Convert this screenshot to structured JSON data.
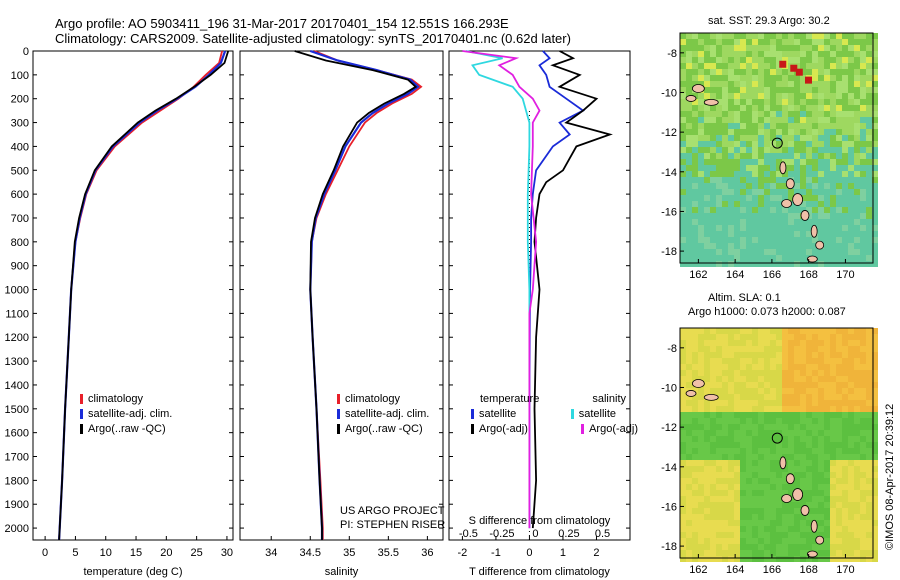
{
  "header": {
    "line1": "Argo profile: AO 5903411_196 31-Mar-2017 20170401_154 12.551S 166.293E",
    "line2": "Climatology: CARS2009. Satellite-adjusted climatology: synTS_20170401.nc (0.62d later)"
  },
  "colors": {
    "climatology": "#e8202a",
    "satellite": "#1a2bd8",
    "argo": "#000000",
    "satellite_salinity": "#2fd8e0",
    "argo_salinity": "#e020e0"
  },
  "map_sst": {
    "title": "sat. SST: 29.3 Argo: 30.2",
    "xticks": [
      "162",
      "164",
      "166",
      "168",
      "170"
    ],
    "yticks": [
      "-8",
      "-10",
      "-12",
      "-14",
      "-16",
      "-18"
    ]
  },
  "map_sla": {
    "title1": "Altim. SLA: 0.1",
    "title2": "Argo h1000: 0.073 h2000: 0.087",
    "xticks": [
      "162",
      "164",
      "166",
      "168",
      "170"
    ],
    "yticks": [
      "-8",
      "-10",
      "-12",
      "-14",
      "-16",
      "-18"
    ]
  },
  "credit": {
    "imos": "©IMOS 08-Apr-2017 20:39:12",
    "project": "US ARGO PROJECT",
    "pi": "PI: STEPHEN RISER"
  },
  "chart_data": [
    {
      "type": "line",
      "xlabel": "temperature (deg C)",
      "ylabel": "",
      "xlim": [
        -2,
        31
      ],
      "ylim": [
        2050,
        0
      ],
      "xticks": [
        "0",
        "5",
        "10",
        "15",
        "20",
        "25",
        "30"
      ],
      "yticks": [
        "0",
        "100",
        "200",
        "300",
        "400",
        "500",
        "600",
        "700",
        "800",
        "900",
        "1000",
        "1100",
        "1200",
        "1300",
        "1400",
        "1500",
        "1600",
        "1700",
        "1800",
        "1900",
        "2000"
      ],
      "legend": [
        "climatology",
        "satellite-adj. clim.",
        "Argo(..raw -QC)"
      ],
      "legend_position": "lower-left",
      "series": [
        {
          "name": "climatology",
          "depth": [
            0,
            50,
            100,
            150,
            200,
            250,
            300,
            400,
            500,
            600,
            700,
            800,
            1000,
            1200,
            1500,
            1800,
            2000,
            2050
          ],
          "values": [
            29.2,
            28.7,
            26.5,
            24.5,
            22.0,
            19.0,
            16.0,
            11.5,
            8.5,
            6.8,
            5.8,
            5.0,
            4.3,
            3.9,
            3.3,
            2.8,
            2.4,
            2.3
          ]
        },
        {
          "name": "satellite-adj. clim.",
          "depth": [
            0,
            50,
            100,
            150,
            200,
            250,
            300,
            400,
            500,
            600,
            700,
            800,
            1000,
            1200,
            1500,
            1800,
            2000,
            2050
          ],
          "values": [
            29.7,
            29.0,
            27.0,
            24.8,
            21.8,
            18.5,
            15.6,
            11.2,
            8.3,
            6.7,
            5.7,
            5.0,
            4.3,
            3.9,
            3.3,
            2.8,
            2.4,
            2.3
          ]
        },
        {
          "name": "Argo(..raw -QC)",
          "depth": [
            0,
            50,
            100,
            150,
            200,
            250,
            300,
            400,
            500,
            600,
            700,
            800,
            1000,
            1200,
            1500,
            1800,
            2000,
            2050
          ],
          "values": [
            30.2,
            29.6,
            27.3,
            24.6,
            21.6,
            18.2,
            15.3,
            11.0,
            8.2,
            6.6,
            5.6,
            4.9,
            4.3,
            3.9,
            3.3,
            2.8,
            2.4,
            2.3
          ]
        }
      ]
    },
    {
      "type": "line",
      "xlabel": "salinity",
      "ylabel": "",
      "xlim": [
        33.6,
        36.2
      ],
      "ylim": [
        2050,
        0
      ],
      "xticks": [
        "34",
        "34.5",
        "35",
        "35.5",
        "36"
      ],
      "legend": [
        "climatology",
        "satellite-adj. clim.",
        "Argo(..raw -QC)"
      ],
      "legend_position": "lower-right",
      "series": [
        {
          "name": "climatology",
          "depth": [
            0,
            40,
            80,
            120,
            150,
            180,
            220,
            260,
            300,
            400,
            500,
            600,
            700,
            800,
            1000,
            1200,
            1500,
            1800,
            2000,
            2050
          ],
          "values": [
            34.55,
            34.85,
            35.35,
            35.8,
            35.92,
            35.8,
            35.55,
            35.35,
            35.2,
            35.0,
            34.85,
            34.7,
            34.58,
            34.52,
            34.5,
            34.53,
            34.58,
            34.63,
            34.66,
            34.66
          ]
        },
        {
          "name": "satellite-adj. clim.",
          "depth": [
            0,
            40,
            80,
            120,
            150,
            180,
            220,
            260,
            300,
            400,
            500,
            600,
            700,
            800,
            1000,
            1200,
            1500,
            1800,
            2000,
            2050
          ],
          "values": [
            34.5,
            34.85,
            35.35,
            35.78,
            35.88,
            35.75,
            35.5,
            35.3,
            35.15,
            34.95,
            34.82,
            34.68,
            34.57,
            34.52,
            34.5,
            34.53,
            34.58,
            34.62,
            34.65,
            34.65
          ]
        },
        {
          "name": "Argo(..raw -QC)",
          "depth": [
            0,
            40,
            80,
            120,
            150,
            180,
            220,
            260,
            300,
            400,
            500,
            600,
            700,
            800,
            1000,
            1200,
            1500,
            1800,
            2000,
            2050
          ],
          "values": [
            34.3,
            34.7,
            35.3,
            35.75,
            35.85,
            35.7,
            35.45,
            35.25,
            35.1,
            34.92,
            34.8,
            34.66,
            34.56,
            34.51,
            34.5,
            34.53,
            34.58,
            34.62,
            34.65,
            34.65
          ]
        }
      ]
    },
    {
      "type": "line",
      "xlabel": "T difference from climatology",
      "xlabel_top": "S difference from climatology",
      "xlim": [
        -2.4,
        3.0
      ],
      "ylim": [
        2050,
        0
      ],
      "xticks": [
        "-2",
        "-1",
        "0",
        "1",
        "2"
      ],
      "xticks_top": [
        "-0.5",
        "-0.25",
        "0",
        "0.25",
        "0.5"
      ],
      "legend": [
        "temperature",
        "satellite",
        "Argo(-adj)",
        "salinity",
        "satellite",
        "Argo(-adj)"
      ],
      "legend_position": "lower-center",
      "series": [
        {
          "name": "satellite",
          "depth": [
            0,
            30,
            60,
            100,
            150,
            200,
            250,
            300,
            350,
            400,
            500,
            600,
            700,
            800,
            1000,
            1200,
            1500,
            1800,
            2000
          ],
          "values": [
            0.4,
            0.6,
            0.3,
            0.5,
            0.6,
            1.1,
            1.6,
            0.9,
            1.2,
            0.7,
            0.2,
            0.1,
            0.05,
            0.05,
            0.02,
            0.01,
            0.0,
            0.0,
            0.0
          ]
        },
        {
          "name": "Argo(-adj)",
          "depth": [
            0,
            30,
            60,
            100,
            150,
            200,
            250,
            300,
            350,
            400,
            450,
            500,
            550,
            600,
            700,
            800,
            1000,
            1200,
            1500,
            1800,
            2000
          ],
          "values": [
            0.9,
            1.3,
            0.7,
            1.5,
            0.9,
            2.0,
            1.6,
            1.1,
            2.4,
            1.4,
            1.2,
            1.0,
            0.5,
            0.3,
            0.2,
            0.15,
            0.3,
            0.2,
            0.15,
            0.2,
            0.1
          ]
        },
        {
          "name": "satellite",
          "depth": [
            0,
            30,
            60,
            100,
            150,
            200,
            300,
            400,
            600,
            800,
            1000,
            1500,
            2000
          ],
          "values": [
            -1.9,
            -0.8,
            -1.7,
            -1.5,
            -0.5,
            -0.2,
            0.0,
            0.0,
            -0.05,
            -0.05,
            0.0,
            0.0,
            0.0
          ]
        },
        {
          "name": "Argo(-adj)",
          "depth": [
            0,
            30,
            60,
            100,
            150,
            200,
            250,
            300,
            400,
            600,
            800,
            1000,
            1100,
            1200,
            1500,
            2000
          ],
          "values": [
            -2.0,
            -0.4,
            -0.9,
            -0.5,
            -0.3,
            0.1,
            0.3,
            0.1,
            0.1,
            0.05,
            0.2,
            0.1,
            0.0,
            0.0,
            0.0,
            0.0
          ]
        }
      ]
    }
  ]
}
